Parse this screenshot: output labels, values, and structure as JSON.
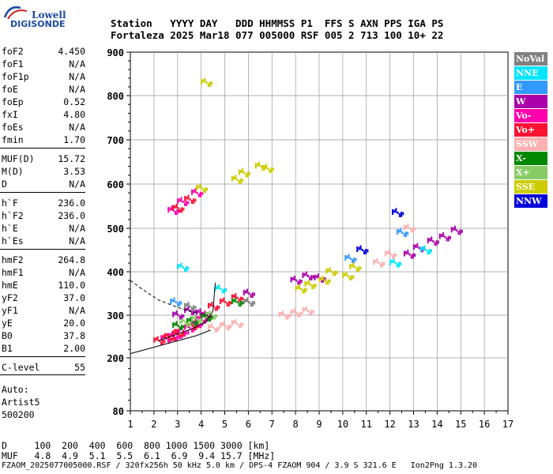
{
  "logo": {
    "line1": "Lowell",
    "line2": "DIGISONDE"
  },
  "header": {
    "line1": "Station   YYYY DAY   DDD HHMMSS P1  FFS S AXN PPS IGA PS",
    "line2": "Fortaleza 2025 Mar18 077 005000 RSF 005 2 713 100 10+ 22"
  },
  "params": [
    {
      "k": "foF2",
      "v": "4.450"
    },
    {
      "k": "foF1",
      "v": "N/A"
    },
    {
      "k": "foF1p",
      "v": "N/A"
    },
    {
      "k": "foE",
      "v": "N/A"
    },
    {
      "k": "foEp",
      "v": "0.52"
    },
    {
      "k": "fxI",
      "v": "4.80"
    },
    {
      "k": "foEs",
      "v": "N/A"
    },
    {
      "k": "fmin",
      "v": "1.70"
    },
    {
      "k": "MUF(D)",
      "v": "15.72"
    },
    {
      "k": "M(D)",
      "v": "3.53"
    },
    {
      "k": "D",
      "v": "N/A"
    },
    {
      "k": "h`F",
      "v": "236.0"
    },
    {
      "k": "h`F2",
      "v": "236.0"
    },
    {
      "k": "h`E",
      "v": "N/A"
    },
    {
      "k": "h`Es",
      "v": "N/A"
    },
    {
      "k": "hmF2",
      "v": "264.8"
    },
    {
      "k": "hmF1",
      "v": "N/A"
    },
    {
      "k": "hmE",
      "v": "110.0"
    },
    {
      "k": "yF2",
      "v": "37.0"
    },
    {
      "k": "yF1",
      "v": "N/A"
    },
    {
      "k": "yE",
      "v": "20.0"
    },
    {
      "k": "B0",
      "v": "37.8"
    },
    {
      "k": "B1",
      "v": "2.00"
    },
    {
      "k": "C-level",
      "v": "55"
    }
  ],
  "auto": {
    "l1": "Auto:",
    "l2": "Artist5",
    "l3": "500200"
  },
  "footer": {
    "d_line": "D     100  200  400  600  800 1000 1500 3000 [km]",
    "muf_line": "MUF   4.8  4.9  5.1  5.5  6.1  6.9  9.4 15.7 [MHz]",
    "file_line": "FZAOM_2025077005000.RSF / 320fx256h 50 kHz 5.0 km / DPS-4 FZAOM 904 / 3.9 S 321.6 E   Ion2Png 1.3.20"
  },
  "legend": [
    {
      "label": "NoVal",
      "color": "#808080"
    },
    {
      "label": "NNE",
      "color": "#00e5ff"
    },
    {
      "label": "E",
      "color": "#3399ff"
    },
    {
      "label": "W",
      "color": "#aa00aa"
    },
    {
      "label": "Vo-",
      "color": "#ff00aa"
    },
    {
      "label": "Vo+",
      "color": "#ff1133"
    },
    {
      "label": "SSW",
      "color": "#ffb0b0"
    },
    {
      "label": "X-",
      "color": "#008800"
    },
    {
      "label": "X+",
      "color": "#88cc66"
    },
    {
      "label": "SSE",
      "color": "#cccc00"
    },
    {
      "label": "NNW",
      "color": "#0000dd"
    }
  ],
  "chart_data": {
    "type": "scatter",
    "xlim": [
      1,
      17
    ],
    "ylim": [
      80,
      900
    ],
    "x_ticks": [
      "1",
      "2",
      "3",
      "4",
      "5",
      "6",
      "7",
      "8",
      "9",
      "10",
      "11",
      "12",
      "13",
      "14",
      "15",
      "16",
      "17"
    ],
    "y_ticks": [
      "80",
      "200",
      "300",
      "400",
      "500",
      "600",
      "700",
      "800",
      "900"
    ],
    "y_tick_values": [
      80,
      200,
      300,
      400,
      500,
      600,
      700,
      800,
      900
    ],
    "grid": true,
    "series": [
      {
        "name": "Vo-",
        "color": "#ff00aa",
        "points": [
          [
            2.5,
            245
          ],
          [
            2.8,
            250
          ],
          [
            3.0,
            255
          ],
          [
            3.2,
            262
          ],
          [
            3.5,
            270
          ],
          [
            3.8,
            280
          ],
          [
            4.0,
            290
          ],
          [
            4.2,
            300
          ],
          [
            2.8,
            540
          ],
          [
            3.2,
            560
          ],
          [
            3.8,
            580
          ]
        ]
      },
      {
        "name": "Vo+",
        "color": "#ff1133",
        "points": [
          [
            2.2,
            240
          ],
          [
            2.6,
            248
          ],
          [
            3.0,
            258
          ],
          [
            3.6,
            275
          ],
          [
            4.5,
            320
          ],
          [
            5.0,
            330
          ],
          [
            5.5,
            340
          ],
          [
            3.0,
            545
          ],
          [
            3.5,
            565
          ]
        ]
      },
      {
        "name": "W",
        "color": "#aa00aa",
        "points": [
          [
            3.0,
            300
          ],
          [
            3.5,
            310
          ],
          [
            4.0,
            305
          ],
          [
            6.0,
            350
          ],
          [
            8.0,
            380
          ],
          [
            8.5,
            390
          ],
          [
            9.0,
            385
          ],
          [
            12.8,
            440
          ],
          [
            13.2,
            455
          ],
          [
            13.8,
            470
          ],
          [
            14.3,
            480
          ],
          [
            14.8,
            495
          ]
        ]
      },
      {
        "name": "NNE",
        "color": "#00e5ff",
        "points": [
          [
            3.2,
            410
          ],
          [
            4.8,
            360
          ],
          [
            12.2,
            420
          ],
          [
            13.5,
            450
          ]
        ]
      },
      {
        "name": "E",
        "color": "#3399ff",
        "points": [
          [
            2.9,
            330
          ],
          [
            10.3,
            430
          ],
          [
            12.5,
            490
          ]
        ]
      },
      {
        "name": "SSW",
        "color": "#ffb0b0",
        "points": [
          [
            4.5,
            270
          ],
          [
            5.0,
            275
          ],
          [
            5.5,
            280
          ],
          [
            7.5,
            300
          ],
          [
            8.0,
            305
          ],
          [
            8.5,
            310
          ],
          [
            11.5,
            420
          ],
          [
            12.0,
            440
          ],
          [
            12.8,
            500
          ]
        ]
      },
      {
        "name": "X-",
        "color": "#008800",
        "points": [
          [
            3.0,
            275
          ],
          [
            3.6,
            285
          ],
          [
            4.2,
            295
          ],
          [
            5.5,
            330
          ]
        ]
      },
      {
        "name": "X+",
        "color": "#88cc66",
        "points": [
          [
            3.3,
            282
          ],
          [
            3.8,
            290
          ],
          [
            4.4,
            300
          ]
        ]
      },
      {
        "name": "SSE",
        "color": "#cccc00",
        "points": [
          [
            5.5,
            610
          ],
          [
            5.8,
            625
          ],
          [
            6.5,
            640
          ],
          [
            6.8,
            635
          ],
          [
            4.2,
            830
          ],
          [
            8.2,
            360
          ],
          [
            8.6,
            370
          ],
          [
            9.2,
            380
          ],
          [
            9.5,
            400
          ],
          [
            10.2,
            390
          ],
          [
            10.5,
            410
          ],
          [
            4.0,
            590
          ]
        ]
      },
      {
        "name": "NNW",
        "color": "#0000dd",
        "points": [
          [
            10.8,
            450
          ],
          [
            12.3,
            535
          ]
        ]
      },
      {
        "name": "NoVal",
        "color": "#808080",
        "points": [
          [
            3.5,
            320
          ],
          [
            6.0,
            330
          ]
        ]
      }
    ]
  }
}
